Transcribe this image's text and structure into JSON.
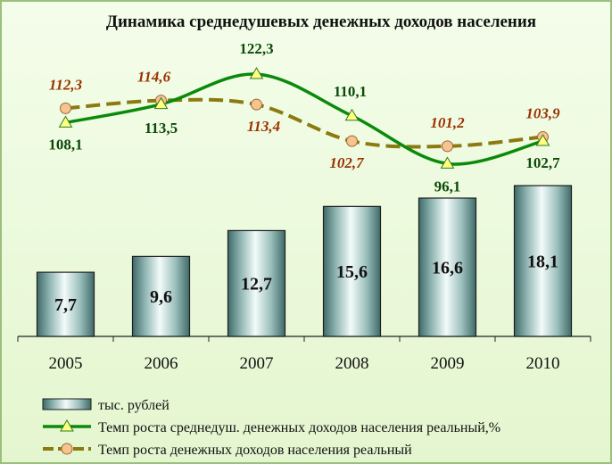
{
  "chart_data": {
    "type": "bar",
    "title": "Динамика среднедушевых денежных доходов населения",
    "categories": [
      "2005",
      "2006",
      "2007",
      "2008",
      "2009",
      "2010"
    ],
    "series": [
      {
        "name": "тыс. рублей",
        "kind": "bar",
        "values": [
          7.7,
          9.6,
          12.7,
          15.6,
          16.6,
          18.1
        ],
        "labels": [
          "7,7",
          "9,6",
          "12,7",
          "15,6",
          "16,6",
          "18,1"
        ]
      },
      {
        "name": "Темп роста среднедуш. денежных доходов населения реальный,%",
        "kind": "line",
        "values": [
          108.1,
          113.5,
          122.3,
          110.1,
          96.1,
          102.7
        ],
        "labels": [
          "108,1",
          "113,5",
          "122,3",
          "110,1",
          "96,1",
          "102,7"
        ]
      },
      {
        "name": "Темп роста денежных доходов населения реальный",
        "kind": "line",
        "values": [
          112.3,
          114.6,
          113.4,
          102.7,
          101.2,
          103.9
        ],
        "labels": [
          "112,3",
          "114,6",
          "113,4",
          "102,7",
          "101,2",
          "103,9"
        ]
      }
    ],
    "legend_position": "bottom",
    "grid": false,
    "colors": {
      "bar": "#8fb5b2",
      "green_line": "#0a8a0a",
      "green_marker": "#ffff80",
      "brown_line": "#8a7a10",
      "brown_marker": "#f7c38f",
      "green_label": "#0b4a0b",
      "brown_label": "#993300"
    }
  }
}
